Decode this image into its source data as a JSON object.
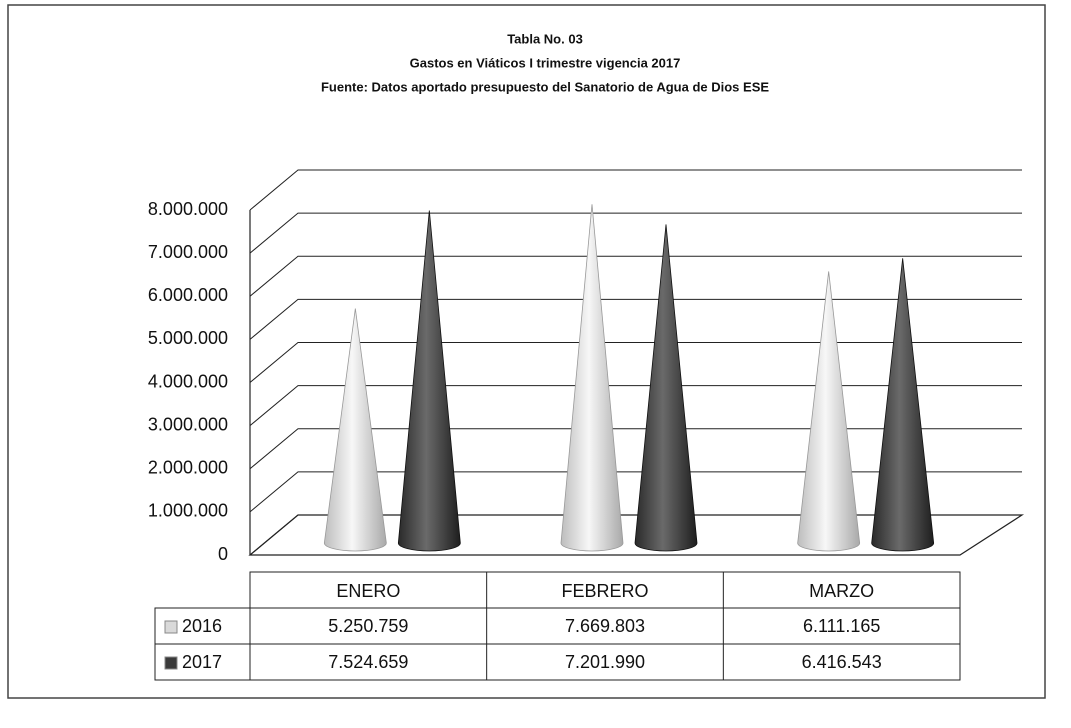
{
  "chart_data": {
    "type": "cone3d",
    "title": "Tabla No. 03",
    "subtitle": [
      "Gastos en Viáticos I trimestre vigencia 2017",
      "Fuente: Datos aportado presupuesto del Sanatorio de Agua de Dios ESE"
    ],
    "categories": [
      "ENERO",
      "FEBRERO",
      "MARZO"
    ],
    "series": [
      {
        "name": "2016",
        "color": "#d9d9d9",
        "values": [
          5250759,
          7669803,
          6111165
        ],
        "value_labels": [
          "5.250.759",
          "7.669.803",
          "6.111.165"
        ]
      },
      {
        "name": "2017",
        "color": "#3a3a3a",
        "values": [
          7524659,
          7201990,
          6416543
        ],
        "value_labels": [
          "7.524.659",
          "7.201.990",
          "6.416.543"
        ]
      }
    ],
    "ylim": [
      0,
      8000000
    ],
    "yticks": [
      0,
      {
        "value": 1000000,
        "label": "1.000.000"
      },
      {
        "value": 2000000,
        "label": "2.000.000"
      },
      {
        "value": 3000000,
        "label": "3.000.000"
      },
      {
        "value": 4000000,
        "label": "4.000.000"
      },
      {
        "value": 5000000,
        "label": "5.000.000"
      },
      {
        "value": 6000000,
        "label": "6.000.000"
      },
      {
        "value": 7000000,
        "label": "7.000.000"
      },
      {
        "value": 8000000,
        "label": "8.000.000"
      }
    ],
    "grid": true
  }
}
